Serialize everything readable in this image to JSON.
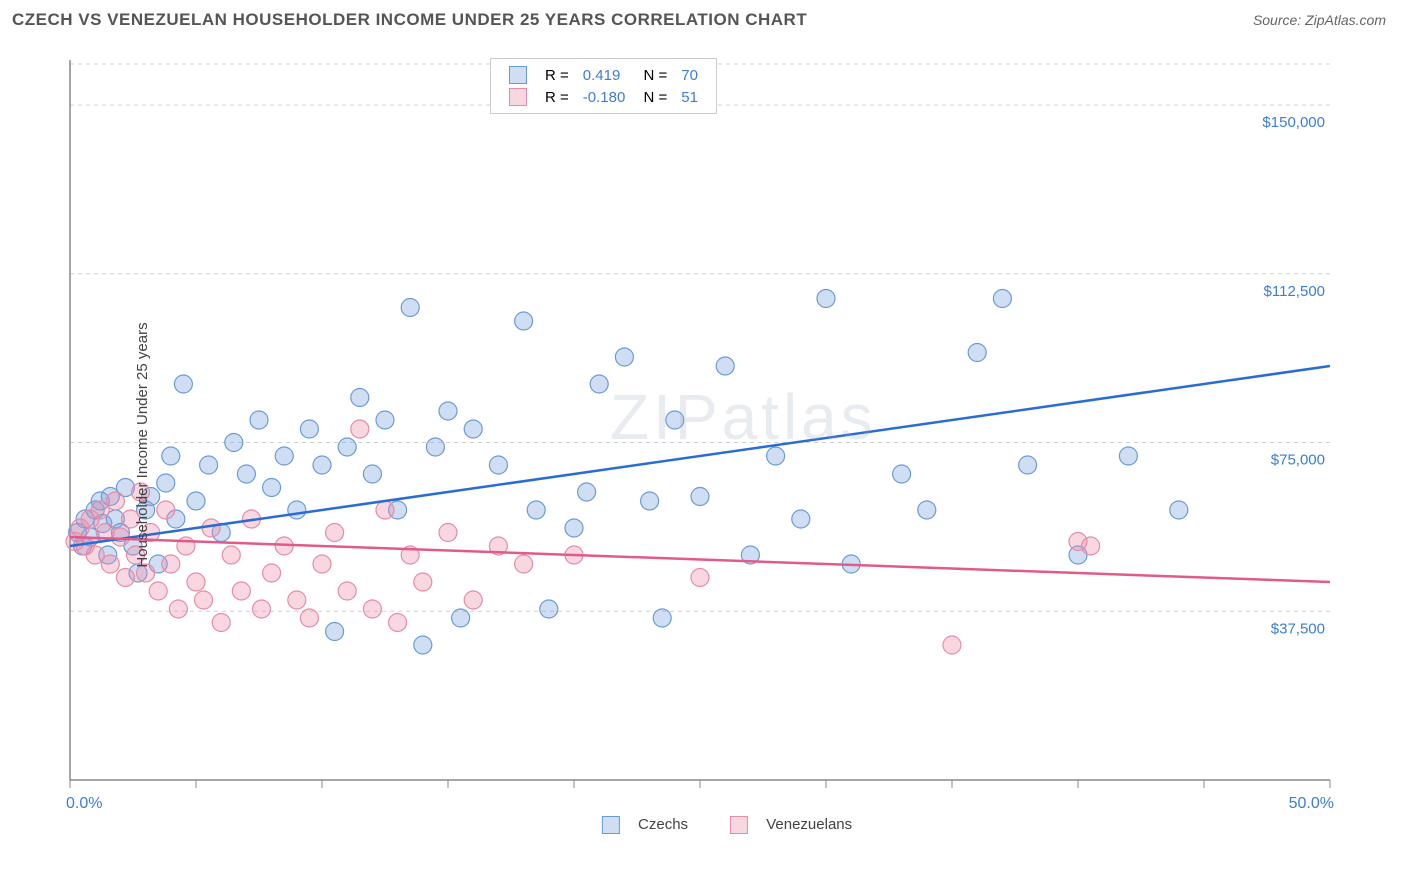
{
  "title": "CZECH VS VENEZUELAN HOUSEHOLDER INCOME UNDER 25 YEARS CORRELATION CHART",
  "source": "Source: ZipAtlas.com",
  "ylabel": "Householder Income Under 25 years",
  "watermark": "ZIPatlas",
  "chart": {
    "type": "scatter",
    "xlim": [
      0,
      50
    ],
    "ylim": [
      0,
      160000
    ],
    "x_tick_start": 0,
    "x_tick_step": 5,
    "x_tick_count": 11,
    "x_label_min": "0.0%",
    "x_label_max": "50.0%",
    "y_grid": [
      37500,
      75000,
      112500,
      150000
    ],
    "y_labels": [
      "$37,500",
      "$75,000",
      "$112,500",
      "$150,000"
    ],
    "background_color": "#ffffff",
    "grid_color": "#d0d0d0",
    "axis_color": "#888888",
    "series": [
      {
        "name": "Czechs",
        "fill": "rgba(120,160,220,0.35)",
        "stroke": "#6a9bd8",
        "marker_r": 9,
        "R": "0.419",
        "N": "70",
        "trend": {
          "x1": 0,
          "y1": 52000,
          "x2": 50,
          "y2": 92000,
          "color": "#2b6cd4",
          "width": 2.5
        },
        "points": [
          [
            0.3,
            55000
          ],
          [
            0.5,
            52000
          ],
          [
            0.6,
            58000
          ],
          [
            0.8,
            54000
          ],
          [
            1.0,
            60000
          ],
          [
            1.2,
            62000
          ],
          [
            1.3,
            57000
          ],
          [
            1.5,
            50000
          ],
          [
            1.6,
            63000
          ],
          [
            1.8,
            58000
          ],
          [
            2.0,
            55000
          ],
          [
            2.2,
            65000
          ],
          [
            2.5,
            52000
          ],
          [
            2.7,
            46000
          ],
          [
            3.0,
            60000
          ],
          [
            3.2,
            63000
          ],
          [
            3.5,
            48000
          ],
          [
            3.8,
            66000
          ],
          [
            4.0,
            72000
          ],
          [
            4.2,
            58000
          ],
          [
            4.5,
            88000
          ],
          [
            5.0,
            62000
          ],
          [
            5.5,
            70000
          ],
          [
            6.0,
            55000
          ],
          [
            6.5,
            75000
          ],
          [
            7.0,
            68000
          ],
          [
            7.5,
            80000
          ],
          [
            8.0,
            65000
          ],
          [
            8.5,
            72000
          ],
          [
            9.0,
            60000
          ],
          [
            9.5,
            78000
          ],
          [
            10.0,
            70000
          ],
          [
            10.5,
            33000
          ],
          [
            11.0,
            74000
          ],
          [
            11.5,
            85000
          ],
          [
            12.0,
            68000
          ],
          [
            12.5,
            80000
          ],
          [
            13.0,
            60000
          ],
          [
            13.5,
            105000
          ],
          [
            14.0,
            30000
          ],
          [
            14.5,
            74000
          ],
          [
            15.0,
            82000
          ],
          [
            15.5,
            36000
          ],
          [
            16.0,
            78000
          ],
          [
            17.0,
            70000
          ],
          [
            18.0,
            102000
          ],
          [
            18.5,
            60000
          ],
          [
            19.0,
            38000
          ],
          [
            20.0,
            56000
          ],
          [
            20.5,
            64000
          ],
          [
            21.0,
            88000
          ],
          [
            22.0,
            94000
          ],
          [
            23.0,
            62000
          ],
          [
            23.5,
            36000
          ],
          [
            24.0,
            80000
          ],
          [
            25.0,
            63000
          ],
          [
            26.0,
            92000
          ],
          [
            27.0,
            50000
          ],
          [
            28.0,
            72000
          ],
          [
            29.0,
            58000
          ],
          [
            30.0,
            107000
          ],
          [
            31.0,
            48000
          ],
          [
            33.0,
            68000
          ],
          [
            34.0,
            60000
          ],
          [
            36.0,
            95000
          ],
          [
            37.0,
            107000
          ],
          [
            38.0,
            70000
          ],
          [
            40.0,
            50000
          ],
          [
            42.0,
            72000
          ],
          [
            44.0,
            60000
          ]
        ]
      },
      {
        "name": "Venezuelans",
        "fill": "rgba(235,140,170,0.35)",
        "stroke": "#e88aa8",
        "marker_r": 9,
        "R": "-0.180",
        "N": "51",
        "trend": {
          "x1": 0,
          "y1": 54000,
          "x2": 50,
          "y2": 44000,
          "color": "#e05a8a",
          "width": 2.5
        },
        "points": [
          [
            0.2,
            53000
          ],
          [
            0.4,
            56000
          ],
          [
            0.6,
            52000
          ],
          [
            0.8,
            58000
          ],
          [
            1.0,
            50000
          ],
          [
            1.2,
            60000
          ],
          [
            1.4,
            55000
          ],
          [
            1.6,
            48000
          ],
          [
            1.8,
            62000
          ],
          [
            2.0,
            54000
          ],
          [
            2.2,
            45000
          ],
          [
            2.4,
            58000
          ],
          [
            2.6,
            50000
          ],
          [
            2.8,
            64000
          ],
          [
            3.0,
            46000
          ],
          [
            3.2,
            55000
          ],
          [
            3.5,
            42000
          ],
          [
            3.8,
            60000
          ],
          [
            4.0,
            48000
          ],
          [
            4.3,
            38000
          ],
          [
            4.6,
            52000
          ],
          [
            5.0,
            44000
          ],
          [
            5.3,
            40000
          ],
          [
            5.6,
            56000
          ],
          [
            6.0,
            35000
          ],
          [
            6.4,
            50000
          ],
          [
            6.8,
            42000
          ],
          [
            7.2,
            58000
          ],
          [
            7.6,
            38000
          ],
          [
            8.0,
            46000
          ],
          [
            8.5,
            52000
          ],
          [
            9.0,
            40000
          ],
          [
            9.5,
            36000
          ],
          [
            10.0,
            48000
          ],
          [
            10.5,
            55000
          ],
          [
            11.0,
            42000
          ],
          [
            11.5,
            78000
          ],
          [
            12.0,
            38000
          ],
          [
            12.5,
            60000
          ],
          [
            13.0,
            35000
          ],
          [
            13.5,
            50000
          ],
          [
            14.0,
            44000
          ],
          [
            15.0,
            55000
          ],
          [
            16.0,
            40000
          ],
          [
            17.0,
            52000
          ],
          [
            18.0,
            48000
          ],
          [
            20.0,
            50000
          ],
          [
            25.0,
            45000
          ],
          [
            35.0,
            30000
          ],
          [
            40.0,
            53000
          ],
          [
            40.5,
            52000
          ]
        ]
      }
    ]
  },
  "legend_bottom": [
    {
      "label": "Czechs",
      "fill": "rgba(120,160,220,0.35)",
      "stroke": "#6a9bd8"
    },
    {
      "label": "Venezuelans",
      "fill": "rgba(235,140,170,0.35)",
      "stroke": "#e88aa8"
    }
  ]
}
